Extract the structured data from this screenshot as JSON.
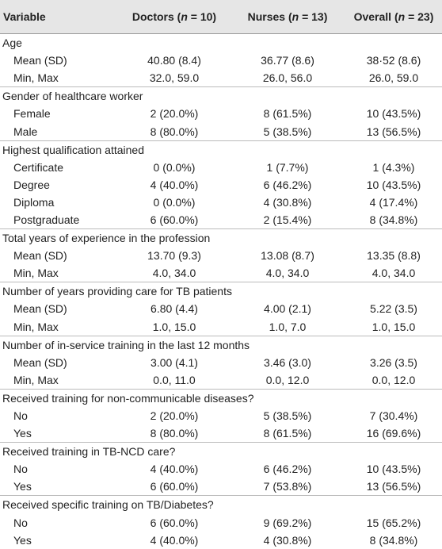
{
  "table": {
    "header": [
      {
        "pre": "Variable"
      },
      {
        "pre": "Doctors (",
        "italic": "n",
        "post": " = 10)"
      },
      {
        "pre": "Nurses (",
        "italic": "n",
        "post": " = 13)"
      },
      {
        "pre": "Overall (",
        "italic": "n",
        "post": " = 23)"
      }
    ],
    "rows": [
      {
        "label": "Age"
      },
      {
        "label": "Mean (SD)",
        "cells": [
          "40.80 (8.4)",
          "36.77 (8.6)",
          "38·52 (8.6)"
        ]
      },
      {
        "label": "Min, Max",
        "cells": [
          "32.0, 59.0",
          "26.0, 56.0",
          "26.0, 59.0"
        ]
      },
      {
        "label": "Gender of healthcare worker"
      },
      {
        "label": "Female",
        "cells": [
          "2 (20.0%)",
          "8 (61.5%)",
          "10 (43.5%)"
        ]
      },
      {
        "label": "Male",
        "cells": [
          "8 (80.0%)",
          "5 (38.5%)",
          "13 (56.5%)"
        ]
      },
      {
        "label": "Highest qualification attained"
      },
      {
        "label": "Certificate",
        "cells": [
          "0 (0.0%)",
          "1 (7.7%)",
          "1 (4.3%)"
        ]
      },
      {
        "label": "Degree",
        "cells": [
          "4 (40.0%)",
          "6 (46.2%)",
          "10 (43.5%)"
        ]
      },
      {
        "label": "Diploma",
        "cells": [
          "0 (0.0%)",
          "4 (30.8%)",
          "4 (17.4%)"
        ]
      },
      {
        "label": "Postgraduate",
        "cells": [
          "6 (60.0%)",
          "2 (15.4%)",
          "8 (34.8%)"
        ]
      },
      {
        "label": "Total years of experience in the profession"
      },
      {
        "label": "Mean (SD)",
        "cells": [
          "13.70 (9.3)",
          "13.08 (8.7)",
          "13.35 (8.8)"
        ]
      },
      {
        "label": "Min, Max",
        "cells": [
          "4.0, 34.0",
          "4.0, 34.0",
          "4.0, 34.0"
        ]
      },
      {
        "label": "Number of years providing care for TB patients"
      },
      {
        "label": "Mean (SD)",
        "cells": [
          "6.80 (4.4)",
          "4.00 (2.1)",
          "5.22 (3.5)"
        ]
      },
      {
        "label": "Min, Max",
        "cells": [
          "1.0, 15.0",
          "1.0, 7.0",
          "1.0, 15.0"
        ]
      },
      {
        "label": "Number of in-service training in the last 12 months"
      },
      {
        "label": "Mean (SD)",
        "cells": [
          "3.00 (4.1)",
          "3.46 (3.0)",
          "3.26 (3.5)"
        ]
      },
      {
        "label": "Min, Max",
        "cells": [
          "0.0, 11.0",
          "0.0, 12.0",
          "0.0, 12.0"
        ]
      },
      {
        "label": "Received training for non-communicable diseases?"
      },
      {
        "label": "No",
        "cells": [
          "2 (20.0%)",
          "5 (38.5%)",
          "7 (30.4%)"
        ]
      },
      {
        "label": "Yes",
        "cells": [
          "8 (80.0%)",
          "8 (61.5%)",
          "16 (69.6%)"
        ]
      },
      {
        "label": "Received training in TB-NCD care?"
      },
      {
        "label": "No",
        "cells": [
          "4 (40.0%)",
          "6 (46.2%)",
          "10 (43.5%)"
        ]
      },
      {
        "label": "Yes",
        "cells": [
          "6 (60.0%)",
          "7 (53.8%)",
          "13 (56.5%)"
        ]
      },
      {
        "label": "Received specific training on TB/Diabetes?"
      },
      {
        "label": "No",
        "cells": [
          "6 (60.0%)",
          "9 (69.2%)",
          "15 (65.2%)"
        ]
      },
      {
        "label": "Yes",
        "cells": [
          "4 (40.0%)",
          "4 (30.8%)",
          "8 (34.8%)"
        ]
      }
    ]
  }
}
